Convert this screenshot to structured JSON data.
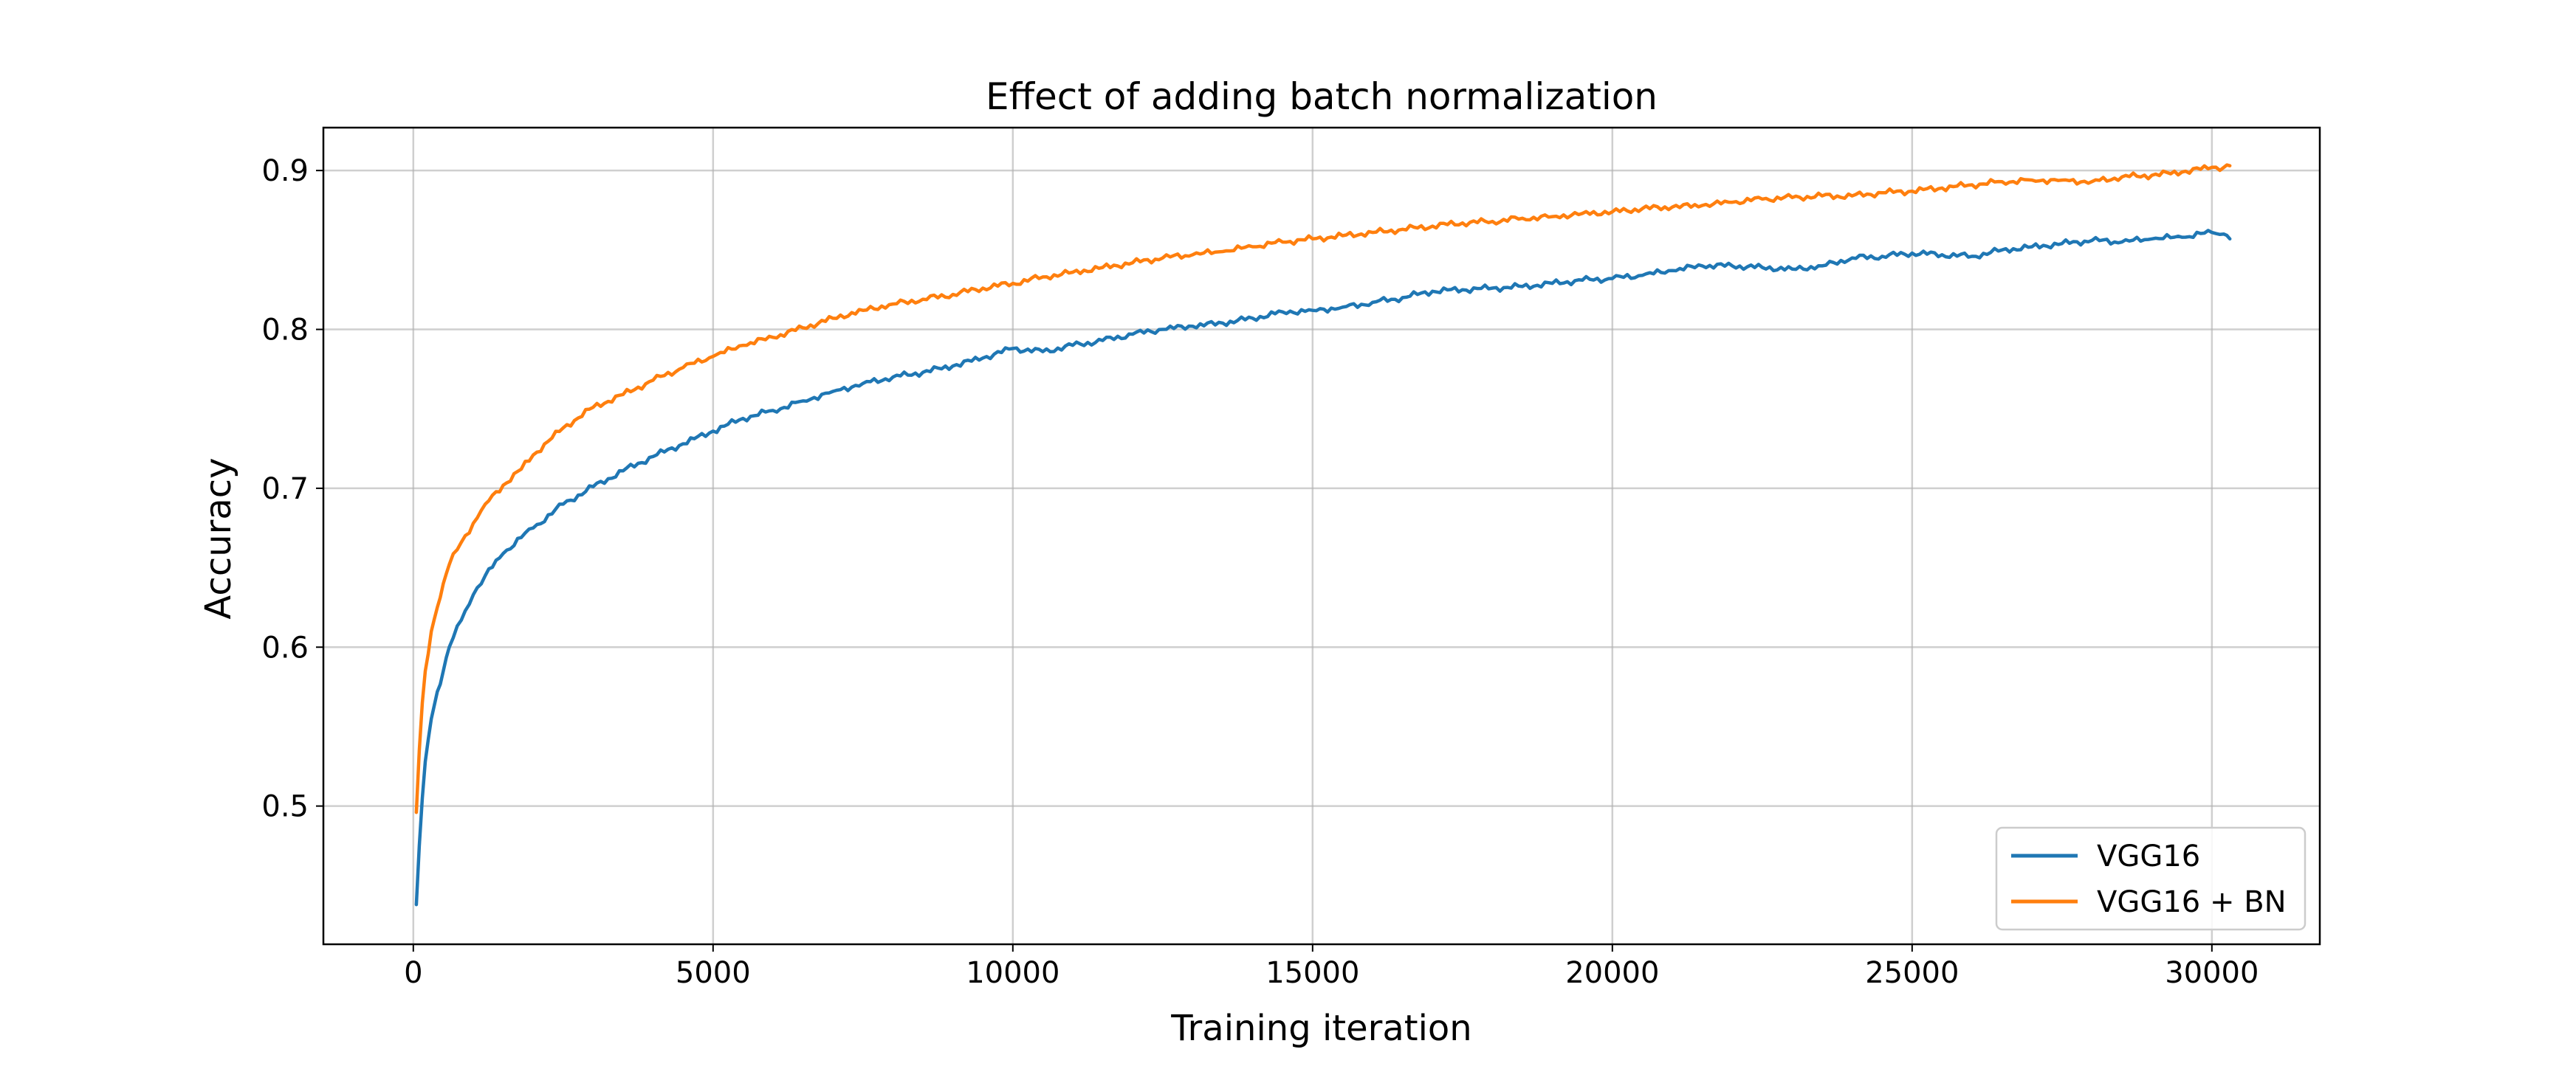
{
  "chart_data": {
    "type": "line",
    "title": "Effect of adding batch normalization",
    "xlabel": "Training iteration",
    "ylabel": "Accuracy",
    "xlim": [
      -1500,
      31800
    ],
    "ylim": [
      0.413,
      0.927
    ],
    "xticks": [
      0,
      5000,
      10000,
      15000,
      20000,
      25000,
      30000
    ],
    "xtick_labels": [
      "0",
      "5000",
      "10000",
      "15000",
      "20000",
      "25000",
      "30000"
    ],
    "yticks": [
      0.5,
      0.6,
      0.7,
      0.8,
      0.9
    ],
    "ytick_labels": [
      "0.5",
      "0.6",
      "0.7",
      "0.8",
      "0.9"
    ],
    "grid": true,
    "legend": "lower right",
    "series": [
      {
        "name": "VGG16",
        "color": "#1f77b4",
        "x": [
          50,
          100,
          150,
          200,
          300,
          400,
          500,
          600,
          800,
          1000,
          1200,
          1500,
          1800,
          2000,
          2500,
          3000,
          3500,
          4000,
          4500,
          5000,
          5500,
          6000,
          6500,
          7000,
          7500,
          8000,
          8500,
          9000,
          9500,
          10000,
          10500,
          11000,
          11500,
          12000,
          12500,
          13000,
          13500,
          14000,
          14500,
          15000,
          15500,
          16000,
          16500,
          17000,
          17500,
          18000,
          18500,
          19000,
          19500,
          20000,
          20500,
          21000,
          21500,
          22000,
          22500,
          23000,
          23500,
          24000,
          24500,
          25000,
          25500,
          26000,
          26500,
          27000,
          27500,
          28000,
          28500,
          29000,
          29500,
          30000,
          30200,
          30300
        ],
        "y": [
          0.438,
          0.475,
          0.505,
          0.528,
          0.555,
          0.572,
          0.585,
          0.6,
          0.617,
          0.633,
          0.645,
          0.659,
          0.669,
          0.675,
          0.69,
          0.701,
          0.711,
          0.72,
          0.728,
          0.736,
          0.744,
          0.749,
          0.755,
          0.761,
          0.766,
          0.77,
          0.773,
          0.777,
          0.782,
          0.788,
          0.786,
          0.79,
          0.793,
          0.797,
          0.8,
          0.802,
          0.804,
          0.807,
          0.811,
          0.812,
          0.814,
          0.817,
          0.82,
          0.824,
          0.825,
          0.826,
          0.827,
          0.829,
          0.831,
          0.832,
          0.834,
          0.837,
          0.84,
          0.84,
          0.839,
          0.838,
          0.84,
          0.845,
          0.846,
          0.848,
          0.847,
          0.846,
          0.85,
          0.852,
          0.854,
          0.856,
          0.855,
          0.857,
          0.858,
          0.861,
          0.86,
          0.857
        ]
      },
      {
        "name": "VGG16 + BN",
        "color": "#ff7f0e",
        "x": [
          50,
          100,
          150,
          200,
          300,
          400,
          500,
          600,
          800,
          1000,
          1200,
          1500,
          1800,
          2000,
          2500,
          3000,
          3500,
          4000,
          4500,
          5000,
          5500,
          6000,
          6500,
          7000,
          7500,
          8000,
          8500,
          9000,
          9500,
          10000,
          10500,
          11000,
          11500,
          12000,
          12500,
          13000,
          13500,
          14000,
          14500,
          15000,
          15500,
          16000,
          16500,
          17000,
          17500,
          18000,
          18500,
          19000,
          19500,
          20000,
          20500,
          21000,
          21500,
          22000,
          22500,
          23000,
          23500,
          24000,
          24500,
          25000,
          25500,
          26000,
          26500,
          27000,
          27500,
          28000,
          28500,
          29000,
          29500,
          30000,
          30200,
          30300
        ],
        "y": [
          0.496,
          0.535,
          0.565,
          0.585,
          0.61,
          0.625,
          0.64,
          0.652,
          0.666,
          0.678,
          0.69,
          0.702,
          0.712,
          0.721,
          0.738,
          0.751,
          0.759,
          0.768,
          0.776,
          0.783,
          0.79,
          0.795,
          0.801,
          0.807,
          0.812,
          0.816,
          0.819,
          0.822,
          0.826,
          0.829,
          0.833,
          0.836,
          0.839,
          0.842,
          0.845,
          0.847,
          0.849,
          0.852,
          0.855,
          0.857,
          0.859,
          0.861,
          0.863,
          0.865,
          0.867,
          0.868,
          0.87,
          0.871,
          0.873,
          0.874,
          0.876,
          0.877,
          0.878,
          0.88,
          0.882,
          0.883,
          0.884,
          0.884,
          0.886,
          0.887,
          0.889,
          0.891,
          0.893,
          0.894,
          0.894,
          0.893,
          0.896,
          0.897,
          0.899,
          0.902,
          0.902,
          0.903
        ]
      }
    ]
  }
}
